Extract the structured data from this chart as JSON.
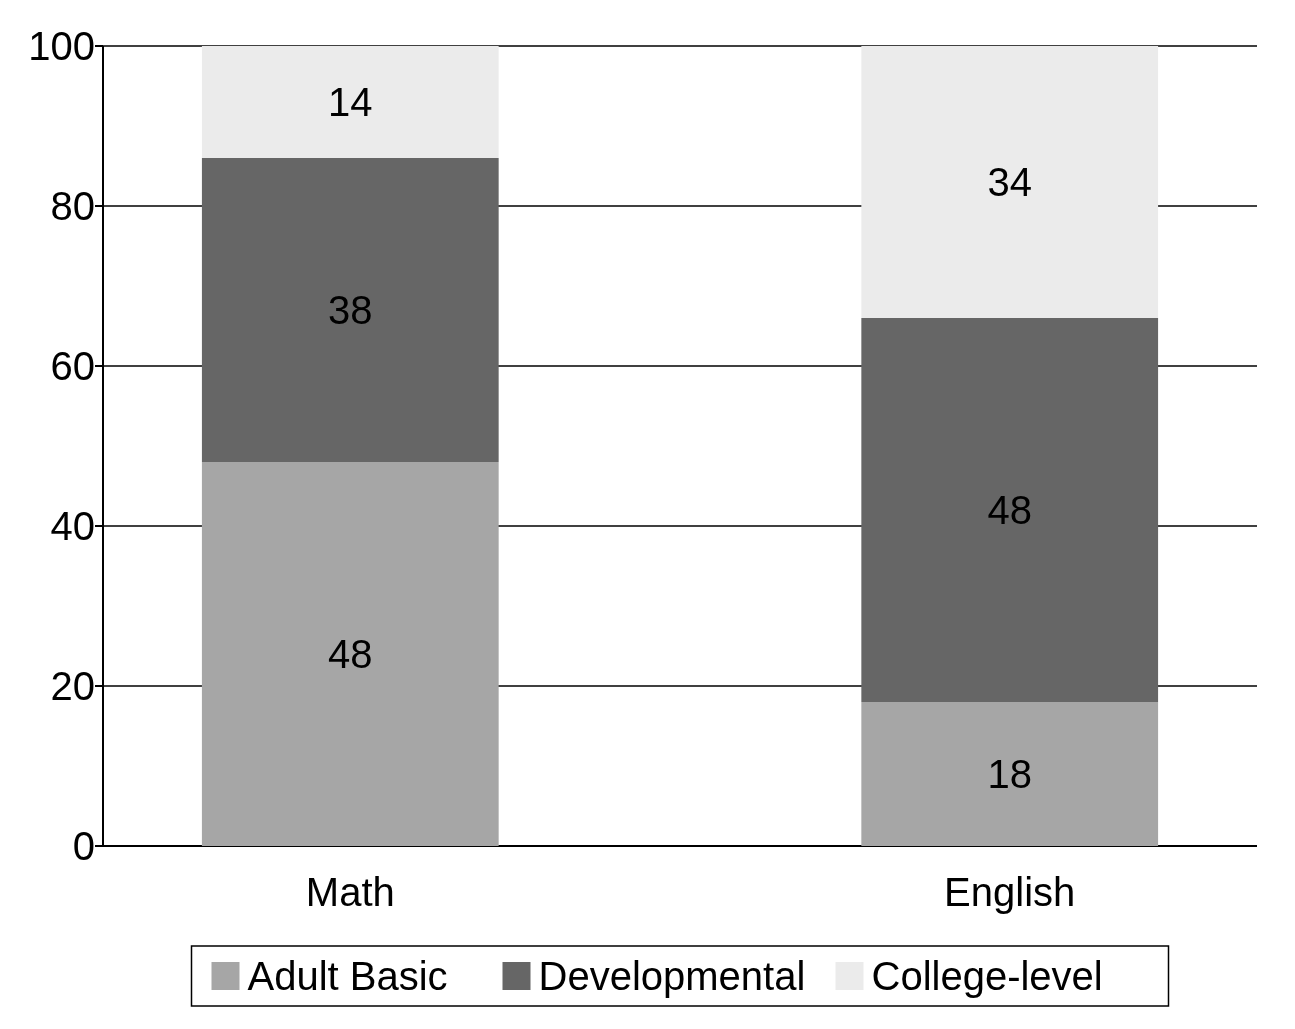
{
  "chart_data": {
    "type": "bar",
    "stacked": true,
    "categories": [
      "Math",
      "English"
    ],
    "series": [
      {
        "name": "Adult Basic",
        "color": "#a6a6a6",
        "values": [
          48,
          18
        ]
      },
      {
        "name": "Developmental",
        "color": "#666666",
        "values": [
          38,
          48
        ]
      },
      {
        "name": "College-level",
        "color": "#ebebeb",
        "values": [
          14,
          34
        ]
      }
    ],
    "ylim": [
      0,
      100
    ],
    "yticks": [
      0,
      20,
      40,
      60,
      80,
      100
    ],
    "grid": "y",
    "legend": "bottom",
    "data_labels": true
  }
}
